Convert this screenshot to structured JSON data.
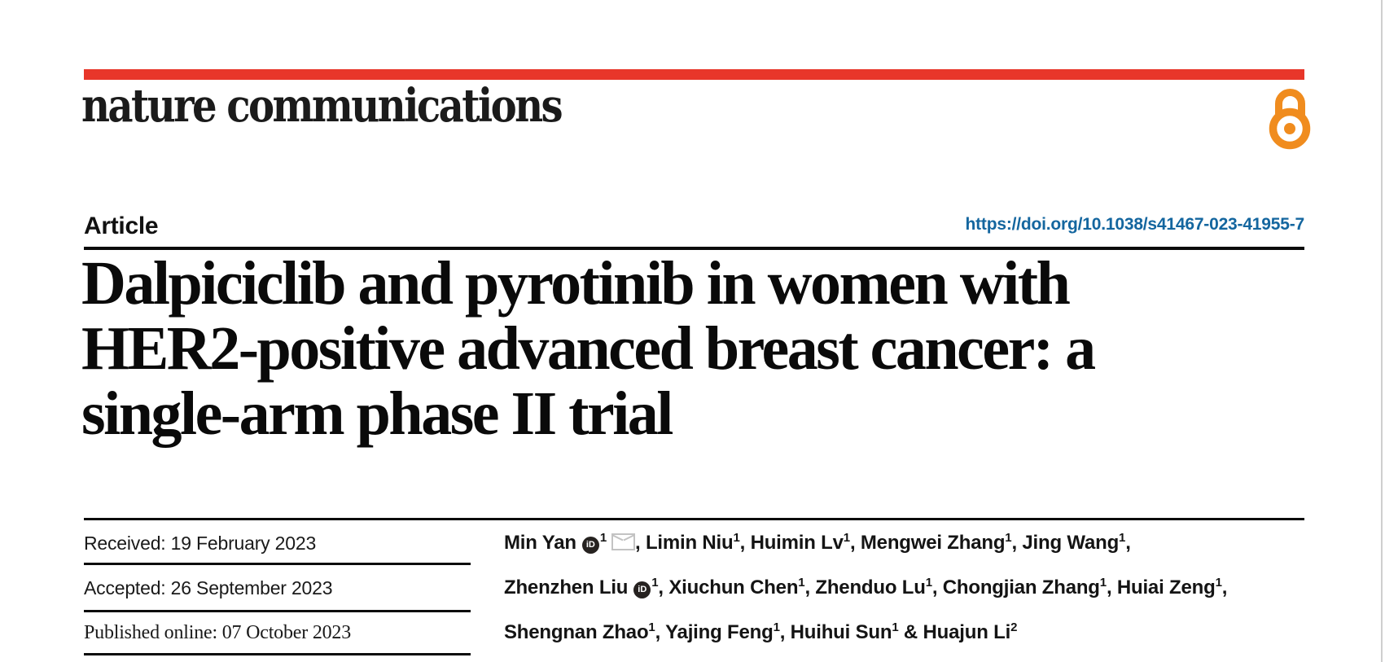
{
  "masthead": {
    "logo_text": "nature communications",
    "accent_bar_color": "#e8362a",
    "open_access_icon_color": "#f08c1e"
  },
  "header": {
    "kicker": "Article",
    "doi_link": "https://doi.org/10.1038/s41467-023-41955-7",
    "doi_color": "#14669f"
  },
  "title": {
    "line1": "Dalpiciclib and pyrotinib in women with",
    "line2": "HER2-positive advanced breast cancer: a",
    "line3": "single-arm phase II trial"
  },
  "history": {
    "received": "Received: 19 February 2023",
    "accepted": "Accepted: 26 September 2023",
    "published": "Published online: 07 October 2023"
  },
  "authors": {
    "orcid_icon_label": "iD",
    "lines": [
      [
        {
          "name": "Min Yan",
          "orcid": true,
          "sup": "1",
          "email": true,
          "sep": ", "
        },
        {
          "name": "Limin Niu",
          "sup": "1",
          "sep": ", "
        },
        {
          "name": "Huimin Lv",
          "sup": "1",
          "sep": ", "
        },
        {
          "name": "Mengwei Zhang",
          "sup": "1",
          "sep": ", "
        },
        {
          "name": "Jing Wang",
          "sup": "1",
          "sep": ","
        }
      ],
      [
        {
          "name": "Zhenzhen Liu",
          "orcid": true,
          "sup": "1",
          "sep": ", "
        },
        {
          "name": "Xiuchun Chen",
          "sup": "1",
          "sep": ", "
        },
        {
          "name": "Zhenduo Lu",
          "sup": "1",
          "sep": ", "
        },
        {
          "name": "Chongjian Zhang",
          "sup": "1",
          "sep": ", "
        },
        {
          "name": "Huiai Zeng",
          "sup": "1",
          "sep": ","
        }
      ],
      [
        {
          "name": "Shengnan Zhao",
          "sup": "1",
          "sep": ", "
        },
        {
          "name": "Yajing Feng",
          "sup": "1",
          "sep": ", "
        },
        {
          "name": "Huihui Sun",
          "sup": "1",
          "sep": " & "
        },
        {
          "name": "Huajun Li",
          "sup": "2",
          "sep": ""
        }
      ]
    ]
  }
}
